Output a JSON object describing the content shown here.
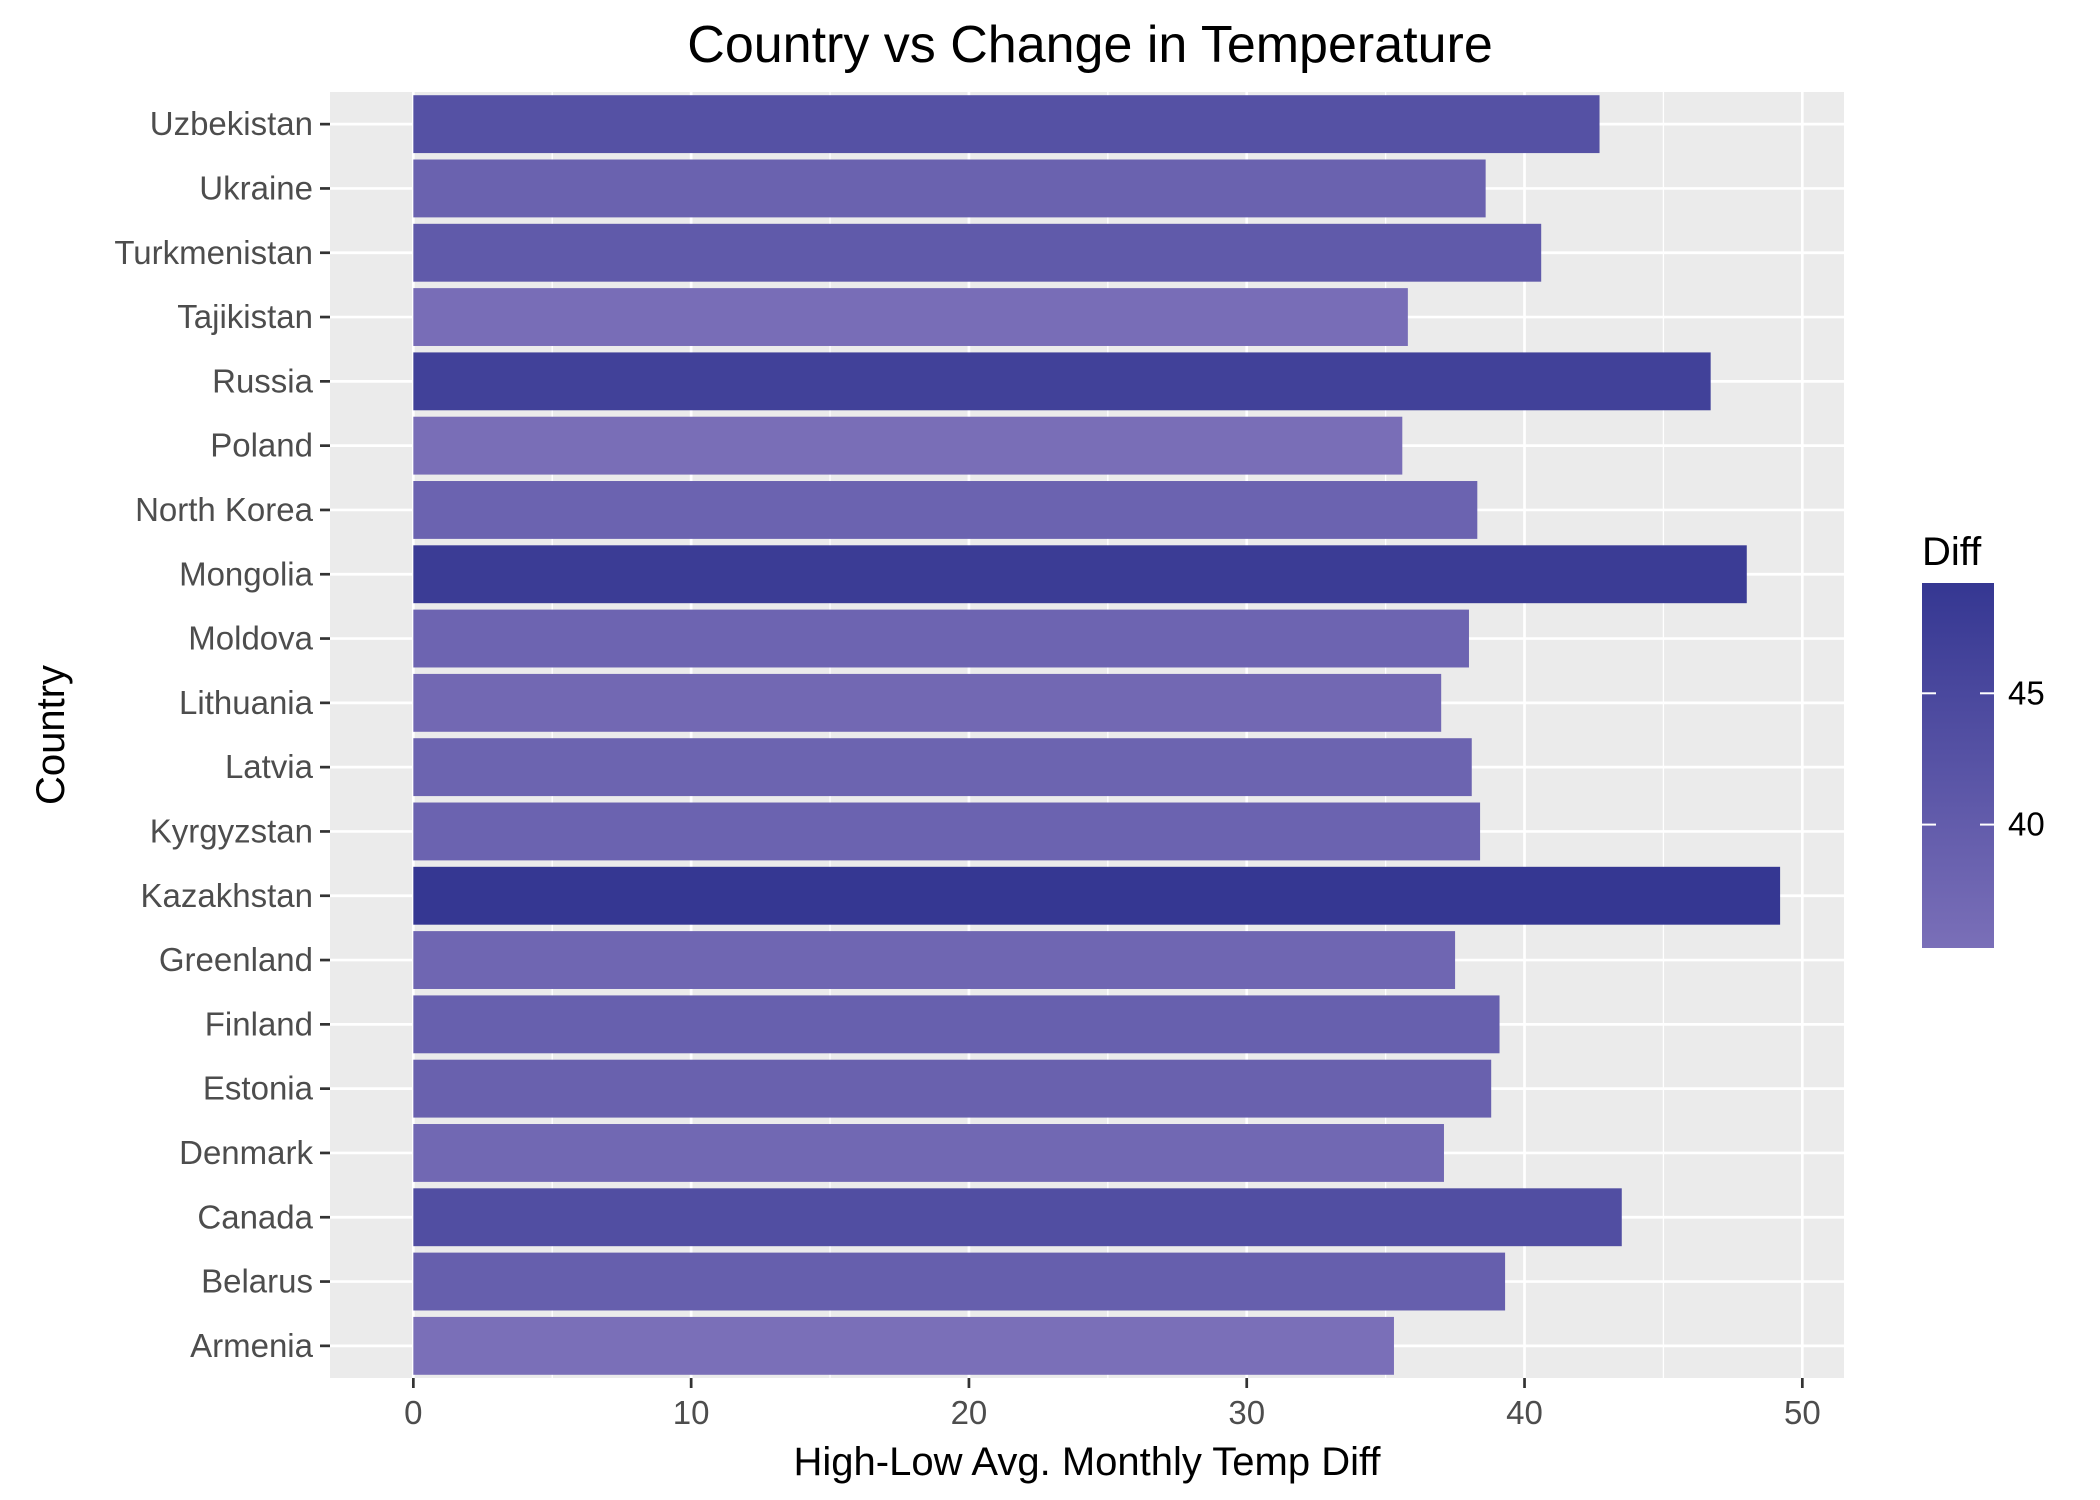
{
  "chart_data": {
    "type": "bar",
    "orientation": "horizontal",
    "title": "Country vs Change in Temperature",
    "xlabel": "High-Low Avg. Monthly Temp Diff",
    "ylabel": "Country",
    "xlim": [
      -3,
      51.5
    ],
    "xticks": [
      0,
      10,
      20,
      30,
      40,
      50
    ],
    "grid": true,
    "categories": [
      "Uzbekistan",
      "Ukraine",
      "Turkmenistan",
      "Tajikistan",
      "Russia",
      "Poland",
      "North Korea",
      "Mongolia",
      "Moldova",
      "Lithuania",
      "Latvia",
      "Kyrgyzstan",
      "Kazakhstan",
      "Greenland",
      "Finland",
      "Estonia",
      "Denmark",
      "Canada",
      "Belarus",
      "Armenia"
    ],
    "values": [
      42.7,
      38.6,
      40.6,
      35.8,
      46.7,
      35.6,
      38.3,
      48.0,
      38.0,
      37.0,
      38.1,
      38.4,
      49.2,
      37.5,
      39.1,
      38.8,
      37.1,
      43.5,
      39.3,
      35.3
    ],
    "legend": {
      "title": "Diff",
      "placement": "right",
      "min": 35.3,
      "max": 49.2,
      "ticks": [
        40,
        45
      ],
      "color_low": "#7a6fb8",
      "color_high": "#353792"
    },
    "colors": {
      "panel_background": "#ebebeb",
      "grid": "#ffffff"
    }
  }
}
